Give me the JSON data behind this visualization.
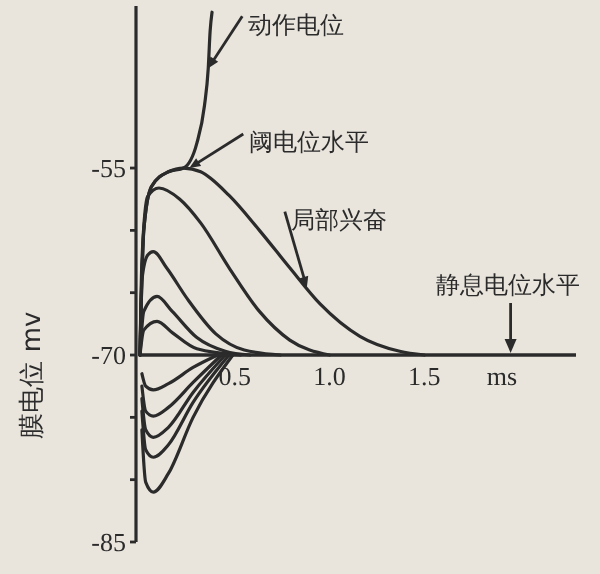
{
  "chart_data": {
    "type": "line",
    "xlabel": "ms",
    "ylabel": "膜电位 mv",
    "xlim": [
      0,
      2.3
    ],
    "ylim": [
      -85,
      -42
    ],
    "xticks": [
      0.5,
      {
        "value": 1,
        "label": "1.0"
      },
      1.5
    ],
    "yticks": [
      -55,
      {
        "value": -60,
        "label": null
      },
      {
        "value": -65,
        "label": null
      },
      -70,
      {
        "value": -75,
        "label": null
      },
      {
        "value": -80,
        "label": null
      },
      -85
    ],
    "grid": false,
    "marker": "none",
    "line_style": "solid",
    "series": [
      {
        "color": "#2b2b2b",
        "x": [
          0,
          0.02,
          0.06,
          0.15,
          0.23,
          0.3,
          0.34,
          0.36,
          0.37,
          0.38
        ],
        "values": [
          -70,
          -60,
          -56.5,
          -55.3,
          -55,
          -53,
          -50,
          -47,
          -44,
          -42.5
        ]
      },
      {
        "color": "#2b2b2b",
        "x": [
          0,
          0.02,
          0.06,
          0.15,
          0.23,
          0.32,
          0.47,
          0.63,
          0.79,
          0.95,
          1.16,
          1.37,
          1.5
        ],
        "values": [
          -70,
          -60,
          -56.5,
          -55.3,
          -55,
          -55.3,
          -57.2,
          -60,
          -63,
          -65.9,
          -68.5,
          -69.7,
          -70
        ]
      },
      {
        "color": "#2b2b2b",
        "x": [
          0,
          0.01,
          0.04,
          0.1,
          0.21,
          0.32,
          0.47,
          0.63,
          0.79,
          1.0
        ],
        "values": [
          -70,
          -62.5,
          -57.3,
          -56.6,
          -57.5,
          -59.4,
          -63,
          -66.5,
          -68.8,
          -70
        ]
      },
      {
        "color": "#2b2b2b",
        "x": [
          0,
          0.01,
          0.04,
          0.07,
          0.14,
          0.25,
          0.4,
          0.55,
          0.74
        ],
        "values": [
          -70,
          -64,
          -62,
          -61.7,
          -63,
          -65.5,
          -68.3,
          -69.6,
          -70
        ]
      },
      {
        "color": "#2b2b2b",
        "x": [
          0,
          0.02,
          0.09,
          0.17,
          0.3,
          0.45,
          0.58
        ],
        "values": [
          -70,
          -66.5,
          -65.3,
          -66.5,
          -68.6,
          -69.7,
          -70
        ]
      },
      {
        "color": "#2b2b2b",
        "x": [
          0,
          0.02,
          0.09,
          0.17,
          0.3,
          0.53
        ],
        "values": [
          -70,
          -68,
          -67.3,
          -68.2,
          -69.5,
          -70
        ]
      },
      {
        "color": "#2b2b2b",
        "x": [
          0.01,
          0.03,
          0.07,
          0.15,
          0.28,
          0.41
        ],
        "values": [
          -71.5,
          -72.5,
          -72.8,
          -72.3,
          -71,
          -70
        ]
      },
      {
        "color": "#2b2b2b",
        "x": [
          0.01,
          0.03,
          0.07,
          0.15,
          0.28,
          0.43
        ],
        "values": [
          -72.5,
          -74.5,
          -74.9,
          -74.2,
          -72.2,
          -70
        ]
      },
      {
        "color": "#2b2b2b",
        "x": [
          0.01,
          0.03,
          0.07,
          0.15,
          0.28,
          0.45
        ],
        "values": [
          -73.5,
          -76,
          -76.6,
          -75.8,
          -73,
          -70
        ]
      },
      {
        "color": "#2b2b2b",
        "x": [
          0.01,
          0.03,
          0.07,
          0.15,
          0.28,
          0.47
        ],
        "values": [
          -74.5,
          -77.6,
          -78.2,
          -77.2,
          -73.8,
          -70
        ]
      },
      {
        "color": "#2b2b2b",
        "x": [
          0.01,
          0.03,
          0.07,
          0.15,
          0.28,
          0.49
        ],
        "values": [
          -76,
          -80.2,
          -81,
          -79.5,
          -75,
          -70
        ]
      }
    ],
    "annotations": [
      {
        "text": "动作电位",
        "x": 0.36,
        "y": -47
      },
      {
        "text": "阈电位水平",
        "x": 0.26,
        "y": -55
      },
      {
        "text": "局部兴奋",
        "x": 0.88,
        "y": -64.6
      },
      "静息电位水平"
    ]
  }
}
